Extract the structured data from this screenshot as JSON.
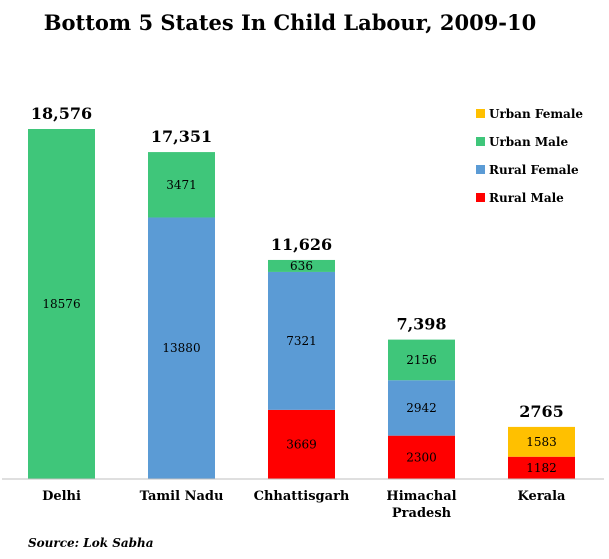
{
  "chart_data": {
    "type": "bar",
    "stacked": true,
    "title": "Bottom 5 States In Child Labour, 2009-10",
    "source": "Source: Lok Sabha",
    "categories": [
      "Delhi",
      "Tamil Nadu",
      "Chhattisgarh",
      "Himachal Pradesh",
      "Kerala"
    ],
    "category_lines": [
      [
        "Delhi"
      ],
      [
        "Tamil Nadu"
      ],
      [
        "Chhattisgarh"
      ],
      [
        "Himachal",
        "Pradesh"
      ],
      [
        "Kerala"
      ]
    ],
    "totals": [
      "18,576",
      "17,351",
      "11,626",
      "7,398",
      "2765"
    ],
    "series": [
      {
        "name": "Rural Male",
        "color": "#ff0000",
        "values": [
          0,
          0,
          3669,
          2300,
          1182
        ]
      },
      {
        "name": "Rural Female",
        "color": "#5b9bd5",
        "values": [
          0,
          13880,
          7321,
          2942,
          0
        ]
      },
      {
        "name": "Urban Male",
        "color": "#3fc67a",
        "values": [
          18576,
          3471,
          636,
          2156,
          0
        ]
      },
      {
        "name": "Urban Female",
        "color": "#ffc000",
        "values": [
          0,
          0,
          0,
          0,
          1583
        ]
      }
    ],
    "legend_order": [
      "Urban Female",
      "Urban Male",
      "Rural Female",
      "Rural Male"
    ],
    "legend_position": "top-right",
    "ylim": [
      0,
      18576
    ],
    "grid": false
  }
}
